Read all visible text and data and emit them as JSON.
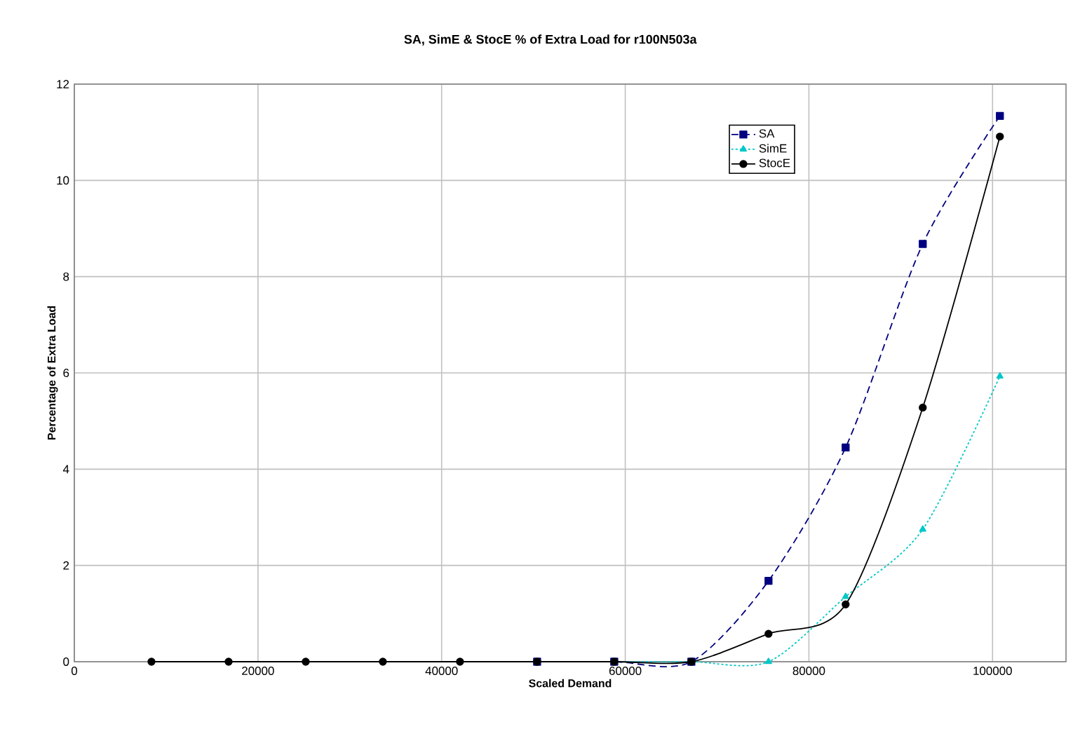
{
  "chart_data": {
    "type": "line",
    "title": "SA, SimE & StocE % of Extra Load for r100N503a",
    "xlabel": "Scaled Demand",
    "ylabel": "Percentage of Extra Load",
    "x": [
      8400,
      16800,
      25200,
      33600,
      42000,
      50400,
      58800,
      67200,
      75600,
      84000,
      92400,
      100800
    ],
    "series": [
      {
        "name": "SA",
        "color": "#000080",
        "marker": "square",
        "line_style": "dashed",
        "values": [
          null,
          null,
          null,
          null,
          null,
          0,
          0,
          0,
          1.68,
          4.45,
          8.68,
          11.34
        ]
      },
      {
        "name": "SimE",
        "color": "#00c8c8",
        "marker": "triangle",
        "line_style": "dotted",
        "values": [
          null,
          null,
          null,
          null,
          null,
          0,
          0,
          0,
          0,
          1.35,
          2.75,
          5.93
        ]
      },
      {
        "name": "StocE",
        "color": "#000000",
        "marker": "circle",
        "line_style": "solid",
        "values": [
          0,
          0,
          0,
          0,
          0,
          0,
          0,
          0,
          0.58,
          1.19,
          5.28,
          10.91
        ]
      }
    ],
    "xlim": [
      0,
      108000
    ],
    "xticks": [
      0,
      20000,
      40000,
      60000,
      80000,
      100000
    ],
    "ylim": [
      0,
      12
    ],
    "yticks": [
      0,
      2,
      4,
      6,
      8,
      10,
      12
    ],
    "grid": true,
    "legend": "top right"
  }
}
